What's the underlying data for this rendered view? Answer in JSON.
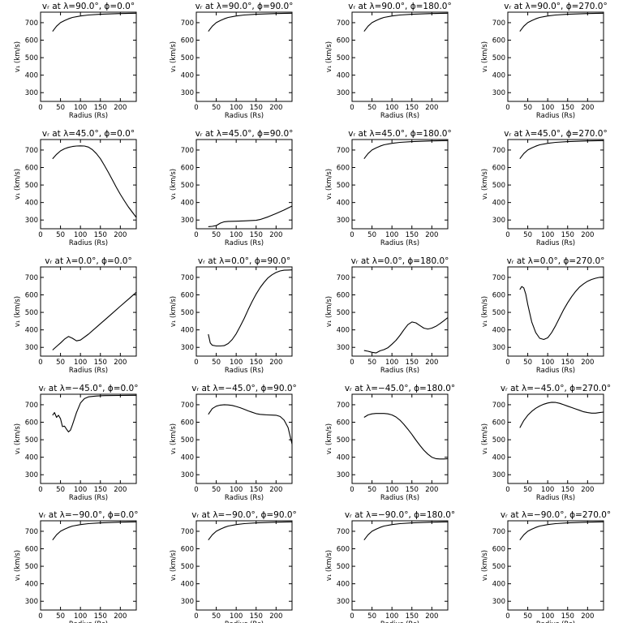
{
  "chart_data": {
    "type": "line",
    "layout": {
      "rows": 5,
      "cols": 4
    },
    "xlabel": "Radius (Rs)",
    "ylabel": "v₁ (km/s)",
    "xlim": [
      0,
      240
    ],
    "ylim": [
      250,
      760
    ],
    "xticks": [
      0,
      50,
      100,
      150,
      200
    ],
    "yticks": [
      300,
      400,
      500,
      600,
      700
    ],
    "panels": [
      {
        "title": "vᵣ at λ=90.0°, ϕ=0.0°",
        "x": [
          30,
          40,
          50,
          60,
          70,
          80,
          100,
          120,
          150,
          200,
          240
        ],
        "y": [
          650,
          680,
          700,
          712,
          722,
          730,
          738,
          744,
          748,
          752,
          754
        ]
      },
      {
        "title": "vᵣ at λ=90.0°, ϕ=90.0°",
        "x": [
          30,
          40,
          50,
          60,
          70,
          80,
          100,
          120,
          150,
          200,
          240
        ],
        "y": [
          650,
          680,
          700,
          712,
          722,
          730,
          738,
          744,
          748,
          752,
          754
        ]
      },
      {
        "title": "vᵣ at λ=90.0°, ϕ=180.0°",
        "x": [
          30,
          40,
          50,
          60,
          70,
          80,
          100,
          120,
          150,
          200,
          240
        ],
        "y": [
          650,
          680,
          700,
          712,
          722,
          730,
          738,
          744,
          748,
          752,
          754
        ]
      },
      {
        "title": "vᵣ at λ=90.0°, ϕ=270.0°",
        "x": [
          30,
          40,
          50,
          60,
          70,
          80,
          100,
          120,
          150,
          200,
          240
        ],
        "y": [
          650,
          680,
          700,
          712,
          722,
          730,
          738,
          744,
          748,
          752,
          754
        ]
      },
      {
        "title": "vᵣ at λ=45.0°, ϕ=0.0°",
        "x": [
          30,
          40,
          50,
          60,
          70,
          80,
          90,
          100,
          110,
          120,
          130,
          140,
          150,
          160,
          170,
          180,
          190,
          200,
          210,
          220,
          230,
          240
        ],
        "y": [
          650,
          675,
          695,
          707,
          715,
          720,
          723,
          724,
          723,
          717,
          702,
          680,
          650,
          612,
          572,
          530,
          487,
          447,
          410,
          375,
          345,
          315
        ]
      },
      {
        "title": "vᵣ at λ=45.0°, ϕ=90.0°",
        "x": [
          30,
          40,
          50,
          60,
          70,
          80,
          100,
          120,
          150,
          160,
          180,
          200,
          220,
          240
        ],
        "y": [
          262,
          264,
          268,
          282,
          290,
          292,
          293,
          295,
          298,
          303,
          318,
          337,
          357,
          380
        ]
      },
      {
        "title": "vᵣ at λ=45.0°, ϕ=180.0°",
        "x": [
          30,
          40,
          50,
          60,
          70,
          80,
          100,
          120,
          150,
          200,
          240
        ],
        "y": [
          650,
          680,
          700,
          712,
          722,
          730,
          738,
          744,
          748,
          752,
          754
        ]
      },
      {
        "title": "vᵣ at λ=45.0°, ϕ=270.0°",
        "x": [
          30,
          40,
          50,
          60,
          70,
          80,
          100,
          120,
          150,
          200,
          240
        ],
        "y": [
          650,
          680,
          700,
          712,
          722,
          730,
          738,
          744,
          748,
          752,
          754
        ]
      },
      {
        "title": "vᵣ at λ=0.0°, ϕ=0.0°",
        "x": [
          30,
          40,
          50,
          60,
          70,
          80,
          90,
          100,
          120,
          140,
          160,
          180,
          200,
          220,
          240
        ],
        "y": [
          285,
          305,
          325,
          347,
          362,
          352,
          337,
          342,
          375,
          415,
          455,
          495,
          535,
          575,
          615
        ]
      },
      {
        "title": "vᵣ at λ=0.0°, ϕ=90.0°",
        "x": [
          30,
          35,
          40,
          50,
          60,
          70,
          80,
          90,
          100,
          110,
          120,
          130,
          140,
          150,
          160,
          170,
          180,
          190,
          200,
          210,
          220,
          230,
          240
        ],
        "y": [
          375,
          325,
          312,
          308,
          308,
          310,
          322,
          345,
          378,
          420,
          465,
          515,
          562,
          605,
          642,
          672,
          698,
          715,
          728,
          737,
          741,
          742,
          743
        ]
      },
      {
        "title": "vᵣ at λ=0.0°, ϕ=180.0°",
        "x": [
          30,
          40,
          50,
          60,
          70,
          80,
          90,
          100,
          110,
          120,
          130,
          140,
          150,
          160,
          170,
          180,
          190,
          200,
          210,
          220,
          230,
          240
        ],
        "y": [
          282,
          278,
          272,
          268,
          280,
          287,
          298,
          318,
          340,
          368,
          400,
          430,
          445,
          440,
          425,
          410,
          405,
          410,
          420,
          435,
          452,
          470
        ]
      },
      {
        "title": "vᵣ at λ=0.0°, ϕ=270.0°",
        "x": [
          30,
          35,
          40,
          45,
          50,
          60,
          70,
          80,
          90,
          100,
          110,
          120,
          130,
          140,
          150,
          160,
          170,
          180,
          190,
          200,
          210,
          220,
          230,
          240
        ],
        "y": [
          630,
          648,
          640,
          605,
          545,
          445,
          385,
          352,
          345,
          355,
          385,
          425,
          470,
          515,
          555,
          590,
          620,
          645,
          663,
          678,
          688,
          695,
          700,
          702
        ]
      },
      {
        "title": "vᵣ at λ=−45.0°, ϕ=0.0°",
        "x": [
          30,
          35,
          40,
          45,
          50,
          55,
          60,
          65,
          70,
          75,
          80,
          90,
          100,
          110,
          120,
          140,
          160,
          200,
          240
        ],
        "y": [
          640,
          655,
          628,
          640,
          620,
          575,
          578,
          560,
          545,
          555,
          585,
          655,
          710,
          735,
          745,
          750,
          752,
          753,
          754
        ]
      },
      {
        "title": "vᵣ at λ=−45.0°, ϕ=90.0°",
        "x": [
          30,
          40,
          50,
          60,
          70,
          80,
          90,
          100,
          110,
          120,
          130,
          140,
          150,
          160,
          170,
          180,
          190,
          200,
          210,
          220,
          230,
          240
        ],
        "y": [
          645,
          678,
          692,
          698,
          700,
          699,
          696,
          690,
          683,
          674,
          665,
          657,
          649,
          645,
          643,
          642,
          641,
          640,
          633,
          612,
          570,
          475
        ]
      },
      {
        "title": "vᵣ at λ=−45.0°, ϕ=180.0°",
        "x": [
          30,
          40,
          50,
          60,
          70,
          80,
          90,
          100,
          110,
          120,
          130,
          140,
          150,
          160,
          170,
          180,
          190,
          200,
          210,
          220,
          230,
          240
        ],
        "y": [
          628,
          642,
          648,
          650,
          650,
          650,
          648,
          642,
          630,
          612,
          588,
          560,
          530,
          498,
          468,
          440,
          418,
          400,
          392,
          390,
          390,
          392
        ]
      },
      {
        "title": "vᵣ at λ=−45.0°, ϕ=270.0°",
        "x": [
          30,
          40,
          50,
          60,
          70,
          80,
          90,
          100,
          110,
          120,
          130,
          140,
          150,
          160,
          170,
          180,
          190,
          200,
          210,
          220,
          230,
          240
        ],
        "y": [
          568,
          610,
          640,
          662,
          680,
          693,
          703,
          710,
          714,
          713,
          708,
          700,
          692,
          684,
          676,
          668,
          660,
          655,
          652,
          652,
          655,
          658
        ]
      },
      {
        "title": "vᵣ at λ=−90.0°, ϕ=0.0°",
        "x": [
          30,
          40,
          50,
          60,
          70,
          80,
          100,
          120,
          150,
          200,
          240
        ],
        "y": [
          650,
          680,
          700,
          712,
          722,
          730,
          738,
          744,
          748,
          752,
          754
        ]
      },
      {
        "title": "vᵣ at λ=−90.0°, ϕ=90.0°",
        "x": [
          30,
          40,
          50,
          60,
          70,
          80,
          100,
          120,
          150,
          200,
          240
        ],
        "y": [
          650,
          680,
          700,
          712,
          722,
          730,
          738,
          744,
          748,
          752,
          754
        ]
      },
      {
        "title": "vᵣ at λ=−90.0°, ϕ=180.0°",
        "x": [
          30,
          40,
          50,
          60,
          70,
          80,
          100,
          120,
          150,
          200,
          240
        ],
        "y": [
          650,
          680,
          700,
          712,
          722,
          730,
          738,
          744,
          748,
          752,
          754
        ]
      },
      {
        "title": "vᵣ at λ=−90.0°, ϕ=270.0°",
        "x": [
          30,
          40,
          50,
          60,
          70,
          80,
          100,
          120,
          150,
          200,
          240
        ],
        "y": [
          650,
          680,
          700,
          712,
          722,
          730,
          738,
          744,
          748,
          752,
          754
        ]
      }
    ]
  }
}
